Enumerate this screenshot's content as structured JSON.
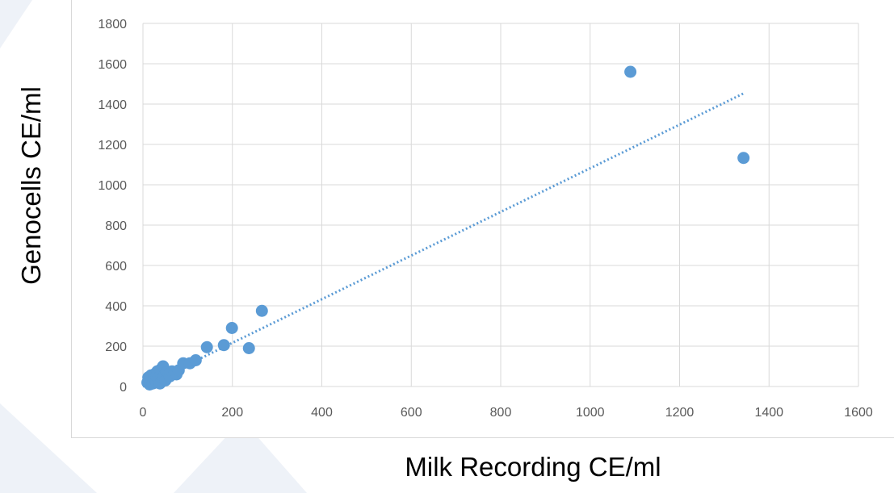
{
  "chart_data": {
    "type": "scatter",
    "title": "",
    "xlabel": "Milk Recording CE/ml",
    "ylabel": "Genocells CE/ml",
    "xlim": [
      0,
      1600
    ],
    "ylim": [
      0,
      1800
    ],
    "x_ticks": [
      "0",
      "200",
      "400",
      "600",
      "800",
      "1000",
      "1200",
      "1400",
      "1600"
    ],
    "y_ticks": [
      "0",
      "200",
      "400",
      "600",
      "800",
      "1000",
      "1200",
      "1400",
      "1600",
      "1800"
    ],
    "grid": true,
    "legend": "none",
    "marker_color": "#5b9bd5",
    "trendline": {
      "type": "linear",
      "style": "dotted",
      "color": "#5b9bd5",
      "x": [
        0,
        1345
      ],
      "y": [
        0,
        1455
      ]
    },
    "series": [
      {
        "points": [
          [
            10,
            20
          ],
          [
            12,
            45
          ],
          [
            15,
            10
          ],
          [
            15,
            30
          ],
          [
            18,
            55
          ],
          [
            20,
            25
          ],
          [
            22,
            15
          ],
          [
            25,
            40
          ],
          [
            25,
            60
          ],
          [
            28,
            35
          ],
          [
            30,
            20
          ],
          [
            30,
            50
          ],
          [
            32,
            75
          ],
          [
            35,
            30
          ],
          [
            35,
            45
          ],
          [
            38,
            15
          ],
          [
            40,
            60
          ],
          [
            40,
            85
          ],
          [
            42,
            25
          ],
          [
            45,
            40
          ],
          [
            45,
            100
          ],
          [
            48,
            55
          ],
          [
            50,
            30
          ],
          [
            52,
            70
          ],
          [
            55,
            45
          ],
          [
            58,
            60
          ],
          [
            60,
            50
          ],
          [
            65,
            75
          ],
          [
            70,
            65
          ],
          [
            75,
            60
          ],
          [
            80,
            80
          ],
          [
            90,
            115
          ],
          [
            105,
            115
          ],
          [
            118,
            130
          ],
          [
            143,
            195
          ],
          [
            181,
            205
          ],
          [
            199,
            290
          ],
          [
            237,
            190
          ],
          [
            266,
            375
          ],
          [
            1090,
            1560
          ],
          [
            1343,
            1133
          ]
        ]
      }
    ]
  },
  "decor": {
    "background_shape_color": "#eef2f8"
  }
}
